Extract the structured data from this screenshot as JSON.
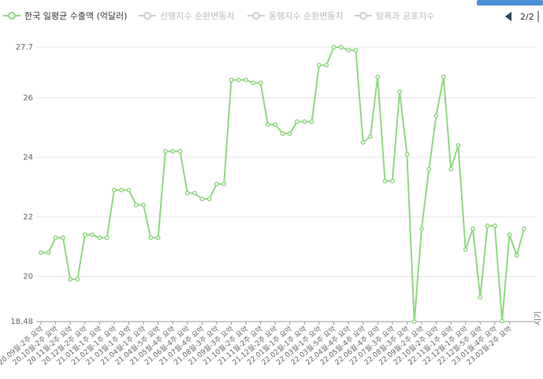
{
  "chart_data": {
    "type": "line",
    "legend": [
      "한국 일평균 수출액 (억달러)",
      "선행지수 순환변동치",
      "동행지수 순환변동치",
      "탐욕과 공포지수"
    ],
    "legend_active": [
      true,
      false,
      false,
      false
    ],
    "legend_page": "2/2",
    "x_label": "시기",
    "categories": [
      "20.09월-2주 요약",
      null,
      "20.10월-2주 요약",
      null,
      "20.11월-2주 요약",
      null,
      "20.12월-2주 요약",
      null,
      "21.01월-1주 요약",
      null,
      "21.02월-1주 요약",
      null,
      "21.03월-1주 요약",
      null,
      "21.04월-1주 요약",
      null,
      "21.04월-5주 요약",
      null,
      "21.05월-4주 요약",
      null,
      "21.06월-4주 요약",
      null,
      "21.07월-4주 요약",
      null,
      "21.08월-3주 요약",
      null,
      "21.09월-3주 요약",
      null,
      "21.10월-2주 요약",
      null,
      "21.11월-2주 요약",
      null,
      "21.12월-2주 요약",
      null,
      "22.01월-1주 요약",
      null,
      "22.02월-1주 요약",
      null,
      "22.03월-1주 요약",
      null,
      "22.03월-5주 요약",
      null,
      "22.04월-4주 요약",
      null,
      "22.05월-4주 요약",
      null,
      "22.06월-4주 요약",
      null,
      "22.07월-3주 요약",
      null,
      "22.08월-3주 요약",
      null,
      "22.09월-2주 요약",
      null,
      "22.10월-2주 요약",
      null,
      "22.11월-1주 요약",
      null,
      "22.12월-1주 요약",
      null,
      "22.12월-5주 요약",
      null,
      "23.01월-4주 요약",
      null,
      "23.02월-2주 요약",
      null,
      null
    ],
    "series": [
      {
        "name": "한국 일평균 수출액 (억달러)",
        "color": "#91d882",
        "values": [
          20.8,
          20.8,
          21.3,
          21.3,
          19.9,
          19.9,
          21.4,
          21.4,
          21.3,
          21.3,
          22.9,
          22.9,
          22.9,
          22.4,
          22.4,
          21.3,
          21.3,
          24.2,
          24.2,
          24.2,
          22.8,
          22.8,
          22.6,
          22.6,
          23.1,
          23.1,
          26.6,
          26.6,
          26.6,
          26.5,
          26.5,
          25.1,
          25.1,
          24.8,
          24.8,
          25.2,
          25.2,
          25.2,
          27.1,
          27.1,
          27.7,
          27.7,
          27.6,
          27.6,
          24.5,
          24.7,
          26.7,
          23.2,
          23.2,
          26.2,
          24.1,
          18.48,
          21.6,
          23.6,
          25.4,
          26.7,
          23.6,
          24.4,
          20.9,
          21.6,
          19.3,
          21.7,
          21.7,
          18.5,
          21.4,
          20.7,
          21.6
        ]
      }
    ],
    "ylim": [
      18.48,
      27.7
    ],
    "yticks": [
      18.48,
      20,
      22,
      24,
      26,
      27.7
    ],
    "grid": true
  }
}
